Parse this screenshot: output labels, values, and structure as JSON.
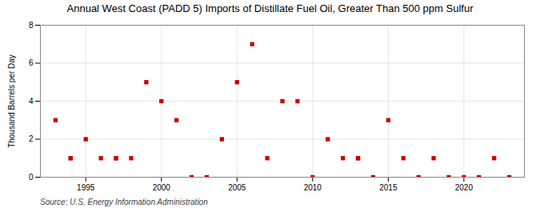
{
  "chart_data": {
    "type": "scatter",
    "title": "Annual West Coast (PADD 5) Imports of Distillate Fuel Oil, Greater Than 500 ppm Sulfur",
    "ylabel": "Thousand Barrels per Day",
    "source": "Source: U.S. Energy Information Administration",
    "x": [
      1993,
      1994,
      1994,
      1995,
      1996,
      1997,
      1997,
      1998,
      1999,
      2000,
      2001,
      2002,
      2003,
      2004,
      2005,
      2006,
      2007,
      2008,
      2009,
      2010,
      2011,
      2012,
      2013,
      2013,
      2014,
      2015,
      2016,
      2017,
      2018,
      2019,
      2020,
      2021,
      2022,
      2023
    ],
    "values": [
      3,
      1,
      1,
      2,
      1,
      1,
      1,
      1,
      5,
      4,
      3,
      0,
      0,
      2,
      5,
      7,
      1,
      4,
      4,
      0,
      2,
      1,
      1,
      1,
      0,
      3,
      1,
      0,
      1,
      0,
      0,
      0,
      1,
      0
    ],
    "color": "#cc0000",
    "marker": "square",
    "ylim": [
      0,
      8
    ],
    "yticks": [
      0,
      2,
      4,
      6,
      8
    ],
    "xlim": [
      1992,
      2024
    ],
    "xticks": [
      1995,
      2000,
      2005,
      2010,
      2015,
      2020
    ],
    "grid": true
  }
}
